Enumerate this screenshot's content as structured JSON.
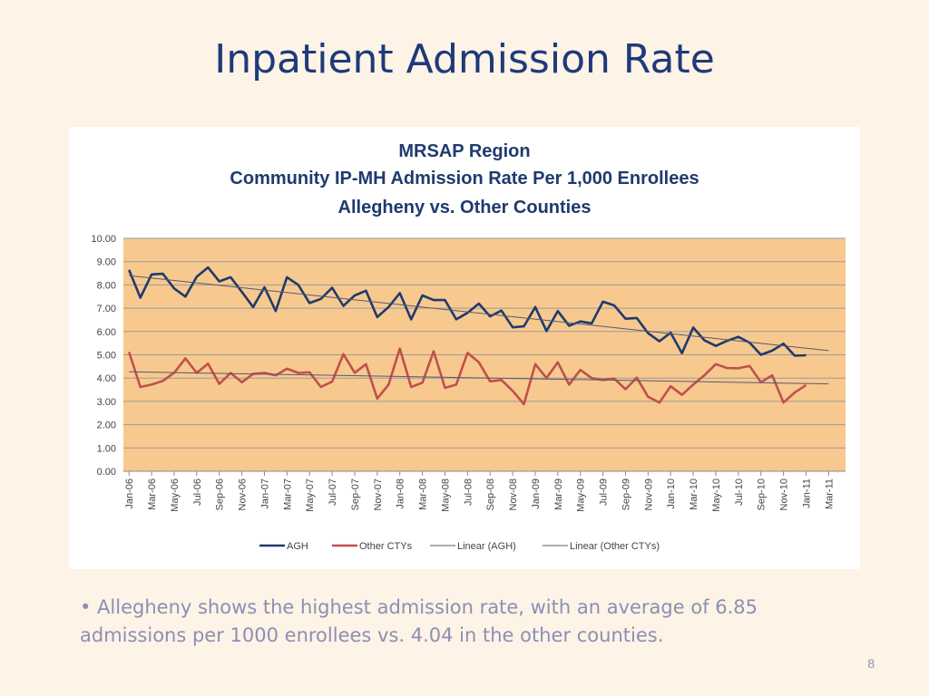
{
  "slide": {
    "title": "Inpatient Admission Rate",
    "bullet": "• Allegheny shows the highest admission rate, with an average of 6.85 admissions per 1000 enrollees vs. 4.04 in the other counties.",
    "page_number": "8"
  },
  "chart_data": {
    "type": "line",
    "title_lines": [
      "MRSAP Region",
      "Community IP-MH Admission Rate Per 1,000 Enrollees",
      "Allegheny vs. Other Counties"
    ],
    "xlabel": "",
    "ylabel": "",
    "ylim": [
      0,
      10
    ],
    "yticks": [
      "0.00",
      "1.00",
      "2.00",
      "3.00",
      "4.00",
      "5.00",
      "6.00",
      "7.00",
      "8.00",
      "9.00",
      "10.00"
    ],
    "x_range": [
      "Jan-06",
      "Mar-11"
    ],
    "x_tick_labels": [
      "Jan-06",
      "Mar-06",
      "May-06",
      "Jul-06",
      "Sep-06",
      "Nov-06",
      "Jan-07",
      "Mar-07",
      "May-07",
      "Jul-07",
      "Sep-07",
      "Nov-07",
      "Jan-08",
      "Mar-08",
      "May-08",
      "Jul-08",
      "Sep-08",
      "Nov-08",
      "Jan-09",
      "Mar-09",
      "May-09",
      "Jul-09",
      "Sep-09",
      "Nov-09",
      "Jan-10",
      "Mar-10",
      "May-10",
      "Jul-10",
      "Sep-10",
      "Nov-10",
      "Jan-11",
      "Mar-11"
    ],
    "grid": true,
    "plot_background": "#f8c98e",
    "legend_position": "bottom",
    "series": [
      {
        "name": "AGH",
        "color": "#1f3a6e",
        "style": "solid-thick",
        "values": [
          8.65,
          7.45,
          8.45,
          8.48,
          7.85,
          7.5,
          8.35,
          8.75,
          8.15,
          8.33,
          7.7,
          7.05,
          7.9,
          6.88,
          8.33,
          8.0,
          7.22,
          7.4,
          7.88,
          7.1,
          7.55,
          7.75,
          6.62,
          7.05,
          7.65,
          6.52,
          7.55,
          7.35,
          7.35,
          6.52,
          6.8,
          7.2,
          6.65,
          6.9,
          6.18,
          6.22,
          7.05,
          6.02,
          6.88,
          6.25,
          6.43,
          6.35,
          7.28,
          7.12,
          6.55,
          6.58,
          5.93,
          5.58,
          5.95,
          5.07,
          6.17,
          5.62,
          5.38,
          5.6,
          5.77,
          5.52,
          5.0,
          5.18,
          5.48,
          4.96,
          4.98
        ]
      },
      {
        "name": "Other CTYs",
        "color": "#c0504d",
        "style": "solid-thick",
        "values": [
          5.12,
          3.62,
          3.72,
          3.88,
          4.23,
          4.85,
          4.22,
          4.62,
          3.75,
          4.22,
          3.82,
          4.18,
          4.22,
          4.12,
          4.4,
          4.22,
          4.25,
          3.62,
          3.85,
          5.03,
          4.23,
          4.6,
          3.12,
          3.72,
          5.27,
          3.62,
          3.8,
          5.15,
          3.58,
          3.72,
          5.08,
          4.68,
          3.86,
          3.92,
          3.45,
          2.88,
          4.6,
          4.0,
          4.68,
          3.72,
          4.35,
          4.0,
          3.92,
          3.98,
          3.52,
          4.02,
          3.2,
          2.95,
          3.65,
          3.28,
          3.72,
          4.12,
          4.6,
          4.43,
          4.42,
          4.52,
          3.82,
          4.12,
          2.95,
          3.38,
          3.7
        ]
      },
      {
        "name": "Linear (AGH)",
        "color": "#555b70",
        "style": "thin",
        "trend_of": "AGH",
        "endpoints": {
          "start": [
            "Jan-06",
            8.4
          ],
          "end": [
            "Mar-11",
            5.18
          ]
        }
      },
      {
        "name": "Linear (Other CTYs)",
        "color": "#555b70",
        "style": "thin",
        "trend_of": "Other CTYs",
        "endpoints": {
          "start": [
            "Jan-06",
            4.27
          ],
          "end": [
            "Mar-11",
            3.75
          ]
        }
      }
    ]
  }
}
